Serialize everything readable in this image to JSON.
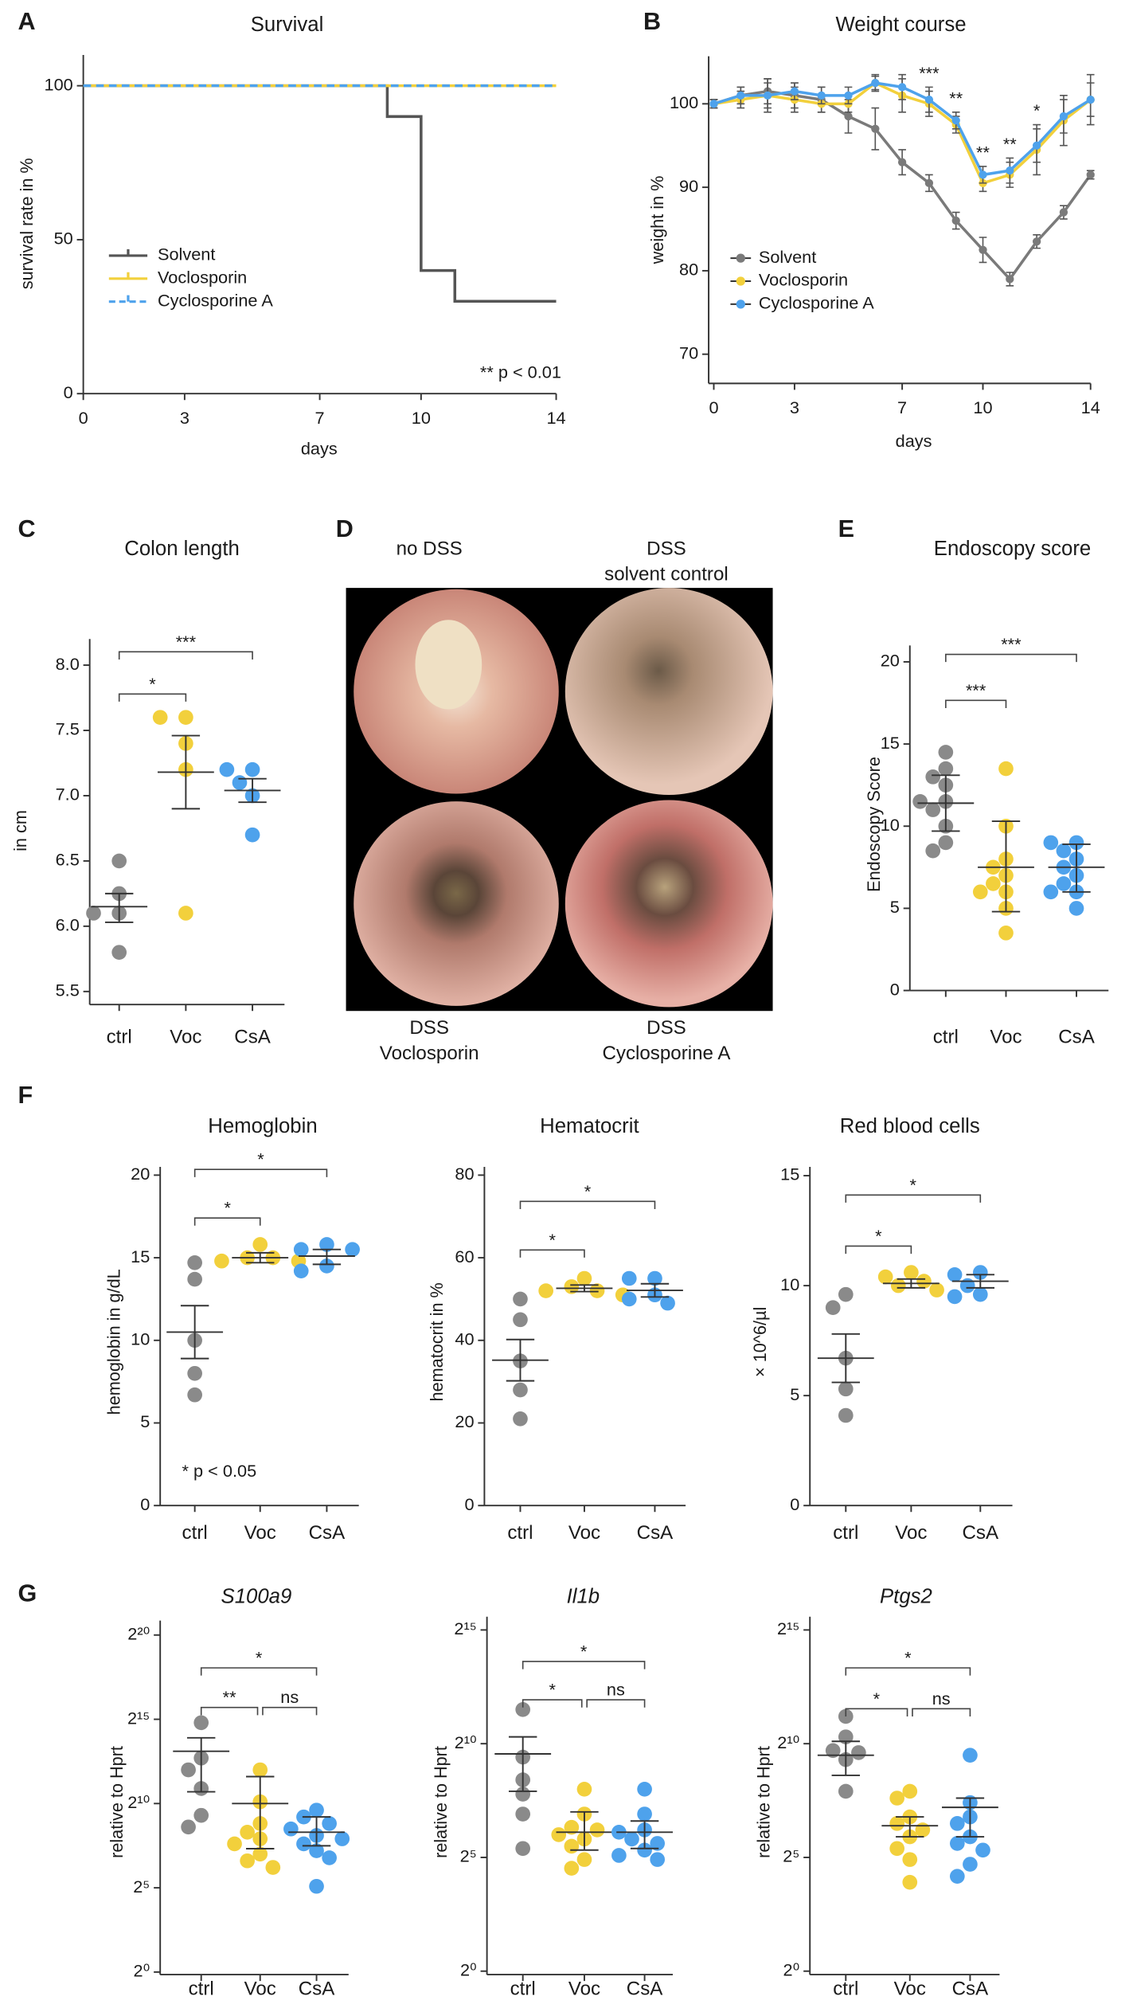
{
  "chart_data": [
    {
      "panel": "A",
      "type": "step",
      "title": "Survival",
      "xlabel": "days",
      "ylabel": "survival rate in %",
      "xlim": [
        0,
        14
      ],
      "ylim": [
        0,
        110
      ],
      "xticks": [
        0,
        3,
        7,
        10,
        14
      ],
      "yticks": [
        0,
        50,
        100
      ],
      "annotation": "** p < 0.01",
      "series": [
        {
          "name": "Solvent",
          "color": "#555555",
          "x": [
            0,
            9,
            10,
            11,
            14
          ],
          "values": [
            100,
            90,
            40,
            30,
            30
          ]
        },
        {
          "name": "Voclosporin",
          "color": "#f2d03c",
          "x": [
            0,
            14
          ],
          "values": [
            100,
            100
          ]
        },
        {
          "name": "Cyclosporine A",
          "color": "#4ea2ec",
          "dashed": true,
          "x": [
            0,
            14
          ],
          "values": [
            100,
            100
          ]
        }
      ]
    },
    {
      "panel": "B",
      "type": "line",
      "title": "Weight course",
      "xlabel": "days",
      "ylabel": "weight in %",
      "xlim": [
        0,
        14
      ],
      "ylim": [
        66.5,
        105.7
      ],
      "xticks": [
        0,
        3,
        7,
        10,
        14
      ],
      "yticks": [
        70,
        80,
        90,
        100
      ],
      "x": [
        0,
        1,
        2,
        3,
        4,
        5,
        6,
        7,
        8,
        9,
        10,
        11,
        12,
        13,
        14
      ],
      "series": [
        {
          "name": "Solvent",
          "color": "#7a7a7a",
          "values": [
            100,
            101,
            101.5,
            101,
            100.5,
            98.5,
            97,
            93,
            90.5,
            86,
            82.5,
            79,
            83.5,
            87,
            91.5
          ],
          "errors": [
            0.5,
            1,
            1.5,
            1.5,
            1.5,
            2,
            2.5,
            1.5,
            1,
            1,
            1.5,
            0.8,
            0.8,
            0.8,
            0.5
          ]
        },
        {
          "name": "Voclosporin",
          "color": "#f2d03c",
          "values": [
            100,
            100.5,
            101,
            100.5,
            100,
            100,
            102.5,
            101,
            100,
            97.5,
            90.5,
            91.5,
            94.5,
            98,
            100.5
          ],
          "errors": [
            0.5,
            1,
            2,
            1.5,
            1,
            1,
            1,
            2,
            1.5,
            1,
            1,
            1.5,
            3,
            3,
            3
          ]
        },
        {
          "name": "Cyclosporine A",
          "color": "#4ea2ec",
          "values": [
            100,
            101,
            101,
            101.5,
            101,
            101,
            102.5,
            102,
            100.5,
            98,
            91.5,
            92,
            95,
            98.5,
            100.5
          ],
          "errors": [
            0.5,
            1,
            1.5,
            1,
            1,
            1,
            0.8,
            1.5,
            1.5,
            1,
            1,
            1.5,
            2,
            2,
            2
          ]
        }
      ],
      "significance": [
        {
          "x": 8,
          "label": "***"
        },
        {
          "x": 9,
          "label": "**"
        },
        {
          "x": 10,
          "label": "**"
        },
        {
          "x": 11,
          "label": "**"
        },
        {
          "x": 12,
          "label": "*"
        }
      ]
    },
    {
      "panel": "C",
      "type": "dot",
      "title": "Colon length",
      "ylabel": "in cm",
      "ylim": [
        5.4,
        8.2
      ],
      "yticks": [
        5.5,
        {
          "value": 6,
          "label": "6.0"
        },
        6.5,
        {
          "value": 7,
          "label": "7.0"
        },
        7.5,
        {
          "value": 8,
          "label": "8.0"
        }
      ],
      "categories": [
        "ctrl",
        "Voc",
        "CsA"
      ],
      "colors": [
        "#8a8a8a",
        "#f2d03c",
        "#4ea2ec"
      ],
      "points": [
        [
          6.5,
          6.25,
          6.1,
          6.1,
          5.8
        ],
        [
          7.6,
          7.6,
          7.4,
          7.2,
          6.1
        ],
        [
          7.2,
          7.2,
          7.1,
          7.0,
          6.7
        ]
      ],
      "means": [
        6.15,
        7.18,
        7.04
      ],
      "error_bars": [
        [
          6.03,
          6.25
        ],
        [
          6.9,
          7.46
        ],
        [
          6.95,
          7.13
        ]
      ],
      "comparisons": [
        {
          "from": "ctrl",
          "to": "Voc",
          "label": "*"
        },
        {
          "from": "ctrl",
          "to": "CsA",
          "label": "***"
        }
      ]
    },
    {
      "panel": "E",
      "type": "dot",
      "title": "Endoscopy score",
      "ylabel": "Endoscopy Score",
      "ylim": [
        0,
        21
      ],
      "yticks": [
        0,
        5,
        10,
        15,
        20
      ],
      "categories": [
        "ctrl",
        "Voc",
        "CsA"
      ],
      "colors": [
        "#8a8a8a",
        "#f2d03c",
        "#4ea2ec"
      ],
      "points": [
        [
          14.5,
          13.5,
          13,
          12.5,
          11.5,
          11.5,
          11,
          10,
          9,
          8.5
        ],
        [
          13.5,
          10,
          8,
          7.5,
          7,
          6.5,
          6,
          6,
          5,
          3.5
        ],
        [
          9,
          9,
          8.5,
          8,
          7.5,
          7,
          6.5,
          6,
          6,
          5
        ]
      ],
      "means": [
        11.4,
        7.5,
        7.5
      ],
      "error_bars": [
        [
          9.7,
          13.1
        ],
        [
          4.8,
          10.3
        ],
        [
          6.0,
          8.9
        ]
      ],
      "comparisons": [
        {
          "from": "ctrl",
          "to": "Voc",
          "label": "***"
        },
        {
          "from": "ctrl",
          "to": "CsA",
          "label": "***"
        }
      ]
    },
    {
      "panel": "F",
      "type": "dot",
      "title": "Hemoglobin",
      "ylabel": "hemoglobin in g/dL",
      "annotation": "* p < 0.05",
      "ylim": [
        0,
        20.5
      ],
      "yticks": [
        0,
        5,
        10,
        15,
        20
      ],
      "categories": [
        "ctrl",
        "Voc",
        "CsA"
      ],
      "colors": [
        "#8a8a8a",
        "#f2d03c",
        "#4ea2ec"
      ],
      "points": [
        [
          14.7,
          13.7,
          10,
          8,
          6.7
        ],
        [
          15.8,
          15,
          15,
          14.8,
          14.8
        ],
        [
          15.8,
          15.5,
          15.5,
          14.5,
          14.2
        ]
      ],
      "means": [
        10.5,
        15.0,
        15.1
      ],
      "error_bars": [
        [
          8.9,
          12.1
        ],
        [
          14.7,
          15.3
        ],
        [
          14.6,
          15.5
        ]
      ],
      "comparisons": [
        {
          "from": "ctrl",
          "to": "Voc",
          "label": "*"
        },
        {
          "from": "ctrl",
          "to": "CsA",
          "label": "*"
        }
      ]
    },
    {
      "type": "dot",
      "title": "Hematocrit",
      "ylabel": "hematocrit in %",
      "ylim": [
        0,
        82
      ],
      "yticks": [
        0,
        20,
        40,
        60,
        80
      ],
      "categories": [
        "ctrl",
        "Voc",
        "CsA"
      ],
      "colors": [
        "#8a8a8a",
        "#f2d03c",
        "#4ea2ec"
      ],
      "points": [
        [
          50,
          45,
          35,
          28,
          21
        ],
        [
          55,
          53,
          52,
          52,
          51
        ],
        [
          55,
          55,
          51,
          50,
          49
        ]
      ],
      "means": [
        35.2,
        52.6,
        52.1
      ],
      "error_bars": [
        [
          30.2,
          40.2
        ],
        [
          51.8,
          53.4
        ],
        [
          50.5,
          53.7
        ]
      ],
      "comparisons": [
        {
          "from": "ctrl",
          "to": "Voc",
          "label": "*"
        },
        {
          "from": "ctrl",
          "to": "CsA",
          "label": "*"
        }
      ]
    },
    {
      "type": "dot",
      "title": "Red blood cells",
      "ylabel": "× 10^6/µl",
      "ylim": [
        0,
        15.4
      ],
      "yticks": [
        0,
        5,
        10,
        15
      ],
      "categories": [
        "ctrl",
        "Voc",
        "CsA"
      ],
      "colors": [
        "#8a8a8a",
        "#f2d03c",
        "#4ea2ec"
      ],
      "points": [
        [
          9.6,
          9.0,
          6.7,
          5.3,
          4.1
        ],
        [
          10.6,
          10.4,
          10.2,
          10.0,
          9.8
        ],
        [
          10.6,
          10.5,
          10.0,
          9.6,
          9.5
        ]
      ],
      "means": [
        6.7,
        10.1,
        10.2
      ],
      "error_bars": [
        [
          5.6,
          7.8
        ],
        [
          9.9,
          10.3
        ],
        [
          9.9,
          10.5
        ]
      ],
      "comparisons": [
        {
          "from": "ctrl",
          "to": "Voc",
          "label": "*"
        },
        {
          "from": "ctrl",
          "to": "CsA",
          "label": "*"
        }
      ]
    },
    {
      "panel": "G",
      "type": "dot",
      "title": "S100a9",
      "ylabel": "relative to Hprt",
      "log": true,
      "log_base": 2,
      "ylim": [
        0.9,
        1900000
      ],
      "yticks": [
        {
          "value": 1,
          "label": "2⁰"
        },
        {
          "value": 32,
          "label": "2⁵"
        },
        {
          "value": 1024,
          "label": "2¹⁰"
        },
        {
          "value": 32768,
          "label": "2¹⁵"
        },
        {
          "value": 1048576,
          "label": "2²⁰"
        }
      ],
      "categories": [
        "ctrl",
        "Voc",
        "CsA"
      ],
      "colors": [
        "#8a8a8a",
        "#f2d03c",
        "#4ea2ec"
      ],
      "points": [
        [
          28500,
          6650,
          4096,
          1900,
          630,
          390
        ],
        [
          4096,
          1100,
          450,
          315,
          240,
          195,
          128,
          97,
          74
        ],
        [
          780,
          590,
          450,
          360,
          275,
          240,
          195,
          147,
          110,
          34
        ]
      ],
      "means": [
        8800,
        1024,
        315
      ],
      "error_bars": [
        [
          1660,
          15300
        ],
        [
          160,
          3100
        ],
        [
          180,
          590
        ]
      ],
      "comparisons": [
        {
          "from": "ctrl",
          "to": "Voc",
          "label": "**"
        },
        {
          "from": "ctrl",
          "to": "CsA",
          "label": "*"
        },
        {
          "from": "Voc",
          "to": "CsA",
          "label": "ns"
        }
      ]
    },
    {
      "type": "dot",
      "title": "Il1b",
      "ylabel": "relative to Hprt",
      "log": true,
      "log_base": 2,
      "ylim": [
        0.9,
        49000
      ],
      "yticks": [
        {
          "value": 1,
          "label": "2⁰"
        },
        {
          "value": 32,
          "label": "2⁵"
        },
        {
          "value": 1024,
          "label": "2¹⁰"
        },
        {
          "value": 32768,
          "label": "2¹⁵"
        }
      ],
      "categories": [
        "ctrl",
        "Voc",
        "CsA"
      ],
      "colors": [
        "#8a8a8a",
        "#f2d03c",
        "#4ea2ec"
      ],
      "points": [
        [
          2900,
          680,
          340,
          220,
          120,
          42
        ],
        [
          256,
          120,
          80,
          74,
          64,
          56,
          45,
          30,
          23
        ],
        [
          256,
          120,
          74,
          69,
          56,
          49,
          40,
          34,
          30
        ]
      ],
      "means": [
        750,
        69,
        69
      ],
      "error_bars": [
        [
          240,
          1260
        ],
        [
          40,
          128
        ],
        [
          42,
          97
        ]
      ],
      "comparisons": [
        {
          "from": "ctrl",
          "to": "Voc",
          "label": "*"
        },
        {
          "from": "ctrl",
          "to": "CsA",
          "label": "*"
        },
        {
          "from": "Voc",
          "to": "CsA",
          "label": "ns"
        }
      ]
    },
    {
      "type": "dot",
      "title": "Ptgs2",
      "ylabel": "relative to Hprt",
      "log": true,
      "log_base": 2,
      "ylim": [
        0.9,
        49000
      ],
      "yticks": [
        {
          "value": 1,
          "label": "2⁰"
        },
        {
          "value": 32,
          "label": "2⁵"
        },
        {
          "value": 1024,
          "label": "2¹⁰"
        },
        {
          "value": 32768,
          "label": "2¹⁵"
        }
      ],
      "categories": [
        "ctrl",
        "Voc",
        "CsA"
      ],
      "colors": [
        "#8a8a8a",
        "#f2d03c",
        "#4ea2ec"
      ],
      "points": [
        [
          2350,
          1260,
          830,
          780,
          630,
          240
        ],
        [
          240,
          195,
          110,
          90,
          74,
          60,
          42,
          30,
          15
        ],
        [
          720,
          170,
          110,
          90,
          60,
          49,
          40,
          26,
          18
        ]
      ],
      "means": [
        720,
        84,
        147
      ],
      "error_bars": [
        [
          390,
          1100
        ],
        [
          60,
          110
        ],
        [
          60,
          195
        ]
      ],
      "comparisons": [
        {
          "from": "ctrl",
          "to": "Voc",
          "label": "*"
        },
        {
          "from": "ctrl",
          "to": "CsA",
          "label": "*"
        },
        {
          "from": "Voc",
          "to": "CsA",
          "label": "ns"
        }
      ]
    }
  ],
  "panel_d": {
    "panel": "D",
    "captions": [
      [
        "no DSS"
      ],
      [
        "DSS",
        "solvent control"
      ],
      [
        "DSS",
        "Voclosporin"
      ],
      [
        "DSS",
        "Cyclosporine A"
      ]
    ]
  }
}
